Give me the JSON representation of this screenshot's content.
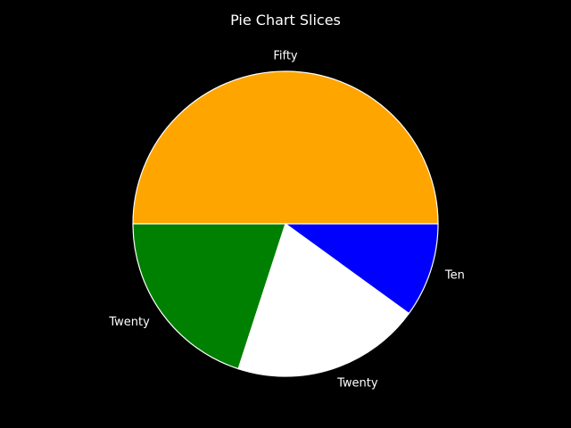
{
  "chart_data": {
    "type": "pie",
    "title": "Pie Chart Slices",
    "start_angle_deg": 0,
    "direction": "counterclockwise",
    "background": "#000000",
    "edge_color": "#ffffff",
    "slices": [
      {
        "label": "Fifty",
        "value": 50,
        "color": "#ffa500"
      },
      {
        "label": "Twenty",
        "value": 20,
        "color": "#008000"
      },
      {
        "label": "Twenty",
        "value": 20,
        "color": "#ffffff"
      },
      {
        "label": "Ten",
        "value": 10,
        "color": "#0000ff"
      }
    ]
  }
}
